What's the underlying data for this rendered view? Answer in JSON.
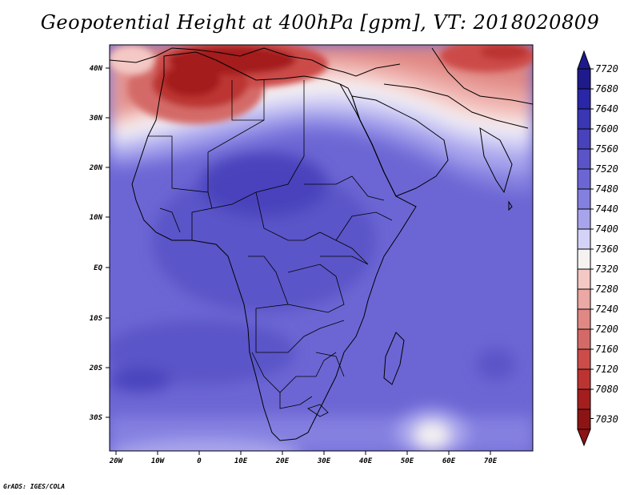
{
  "title": "Geopotential Height at 400hPa [gpm], VT: 2018020809",
  "credit": "GrADS: IGES/COLA",
  "axes": {
    "lat_labels": [
      "40N",
      "30N",
      "20N",
      "10N",
      "EQ",
      "10S",
      "20S",
      "30S"
    ],
    "lon_labels": [
      "20W",
      "10W",
      "0",
      "10E",
      "20E",
      "30E",
      "40E",
      "50E",
      "60E",
      "70E"
    ]
  },
  "colorbar": {
    "levels": [
      "7720",
      "7680",
      "7640",
      "7600",
      "7560",
      "7520",
      "7480",
      "7440",
      "7400",
      "7360",
      "7320",
      "7280",
      "7240",
      "7200",
      "7160",
      "7120",
      "7080",
      "7030"
    ],
    "colors": [
      "#1e1a8c",
      "#2a26a8",
      "#3a36b4",
      "#4842bc",
      "#5a54c8",
      "#6c66d4",
      "#8480e0",
      "#a8a4ec",
      "#d4d2f6",
      "#f6f2f2",
      "#f4c8c4",
      "#eca8a4",
      "#e08884",
      "#d46a68",
      "#cc4c4a",
      "#bc3432",
      "#a41e1e",
      "#8c1414"
    ],
    "top_arrow_color": "#1e1a8c",
    "bottom_arrow_color": "#8c1414"
  }
}
